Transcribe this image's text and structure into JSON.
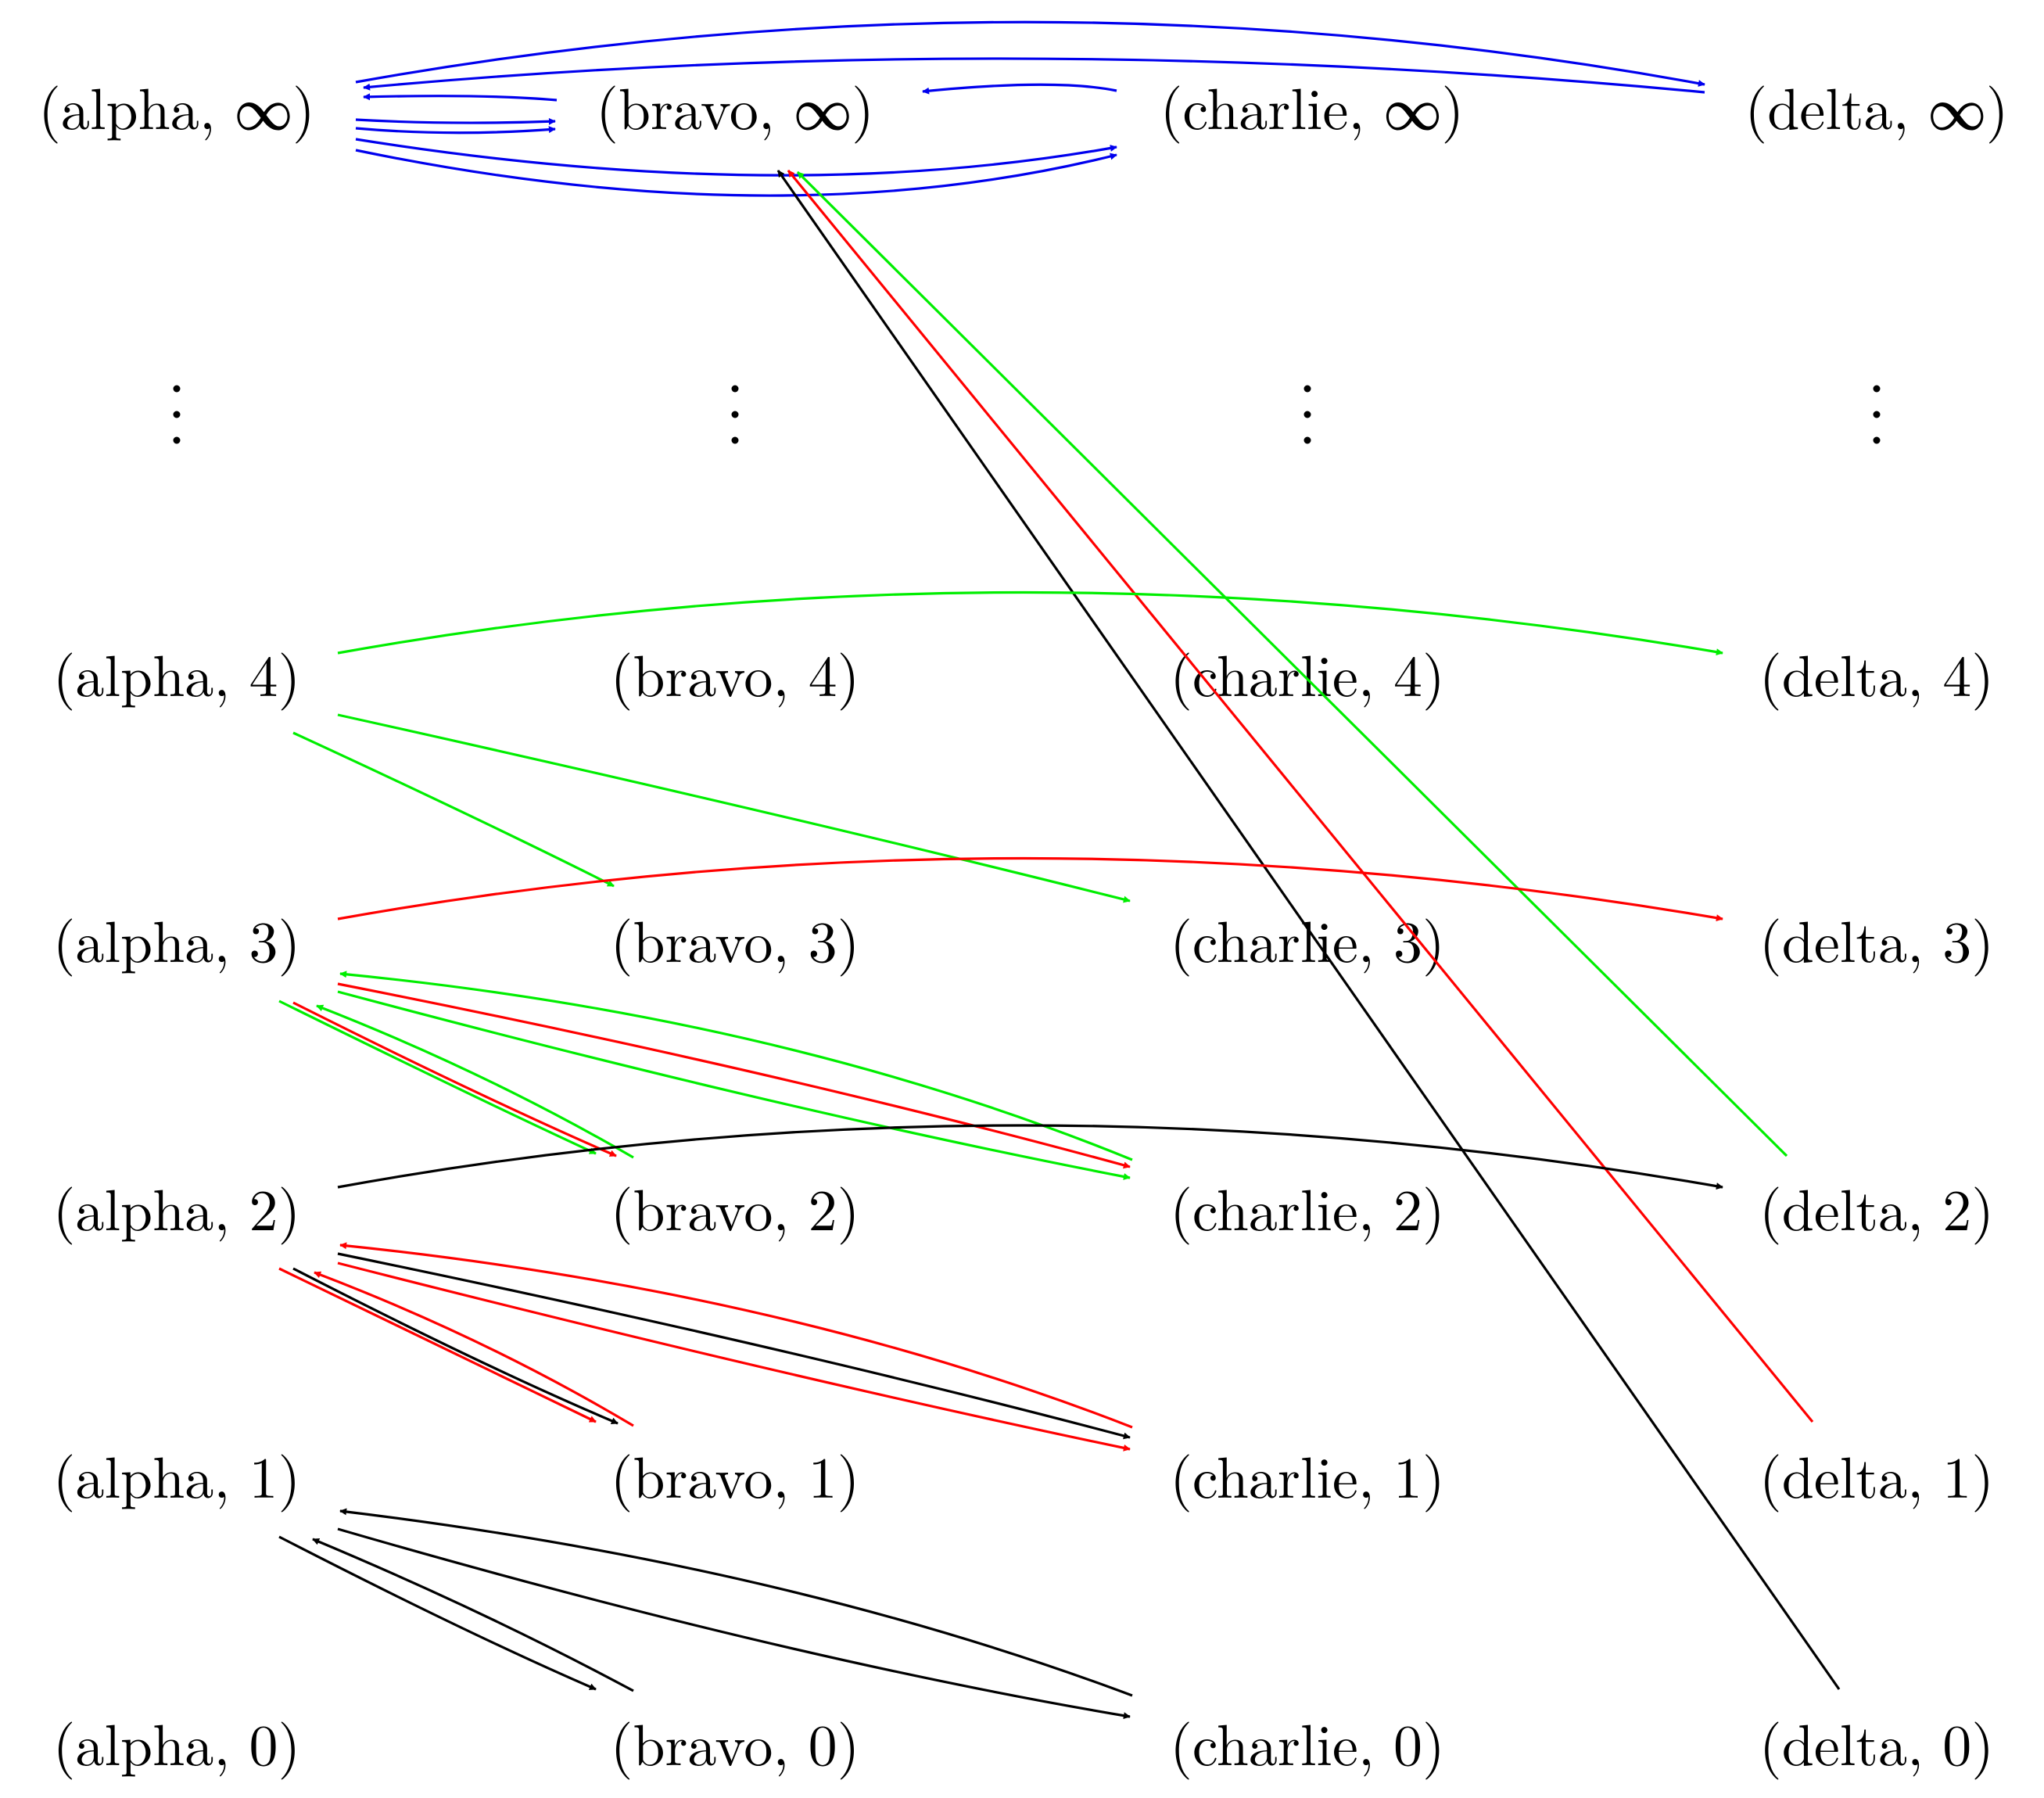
{
  "diagram": {
    "nodes": {
      "a_inf": "(alpha, ∞)",
      "b_inf": "(bravo, ∞)",
      "c_inf": "(charlie, ∞)",
      "d_inf": "(delta, ∞)",
      "a4": "(alpha, 4)",
      "b4": "(bravo, 4)",
      "c4": "(charlie, 4)",
      "d4": "(delta, 4)",
      "a3": "(alpha, 3)",
      "b3": "(bravo, 3)",
      "c3": "(charlie, 3)",
      "d3": "(delta, 3)",
      "a2": "(alpha, 2)",
      "b2": "(bravo, 2)",
      "c2": "(charlie, 2)",
      "d2": "(delta, 2)",
      "a1": "(alpha, 1)",
      "b1": "(bravo, 1)",
      "c1": "(charlie, 1)",
      "d1": "(delta, 1)",
      "a0": "(alpha, 0)",
      "b0": "(bravo, 0)",
      "c0": "(charlie, 0)",
      "d0": "(delta, 0)"
    },
    "edge_colors": {
      "black": "#000000",
      "red": "#ff0000",
      "green": "#00ee00",
      "blue": "#0000ee"
    }
  }
}
